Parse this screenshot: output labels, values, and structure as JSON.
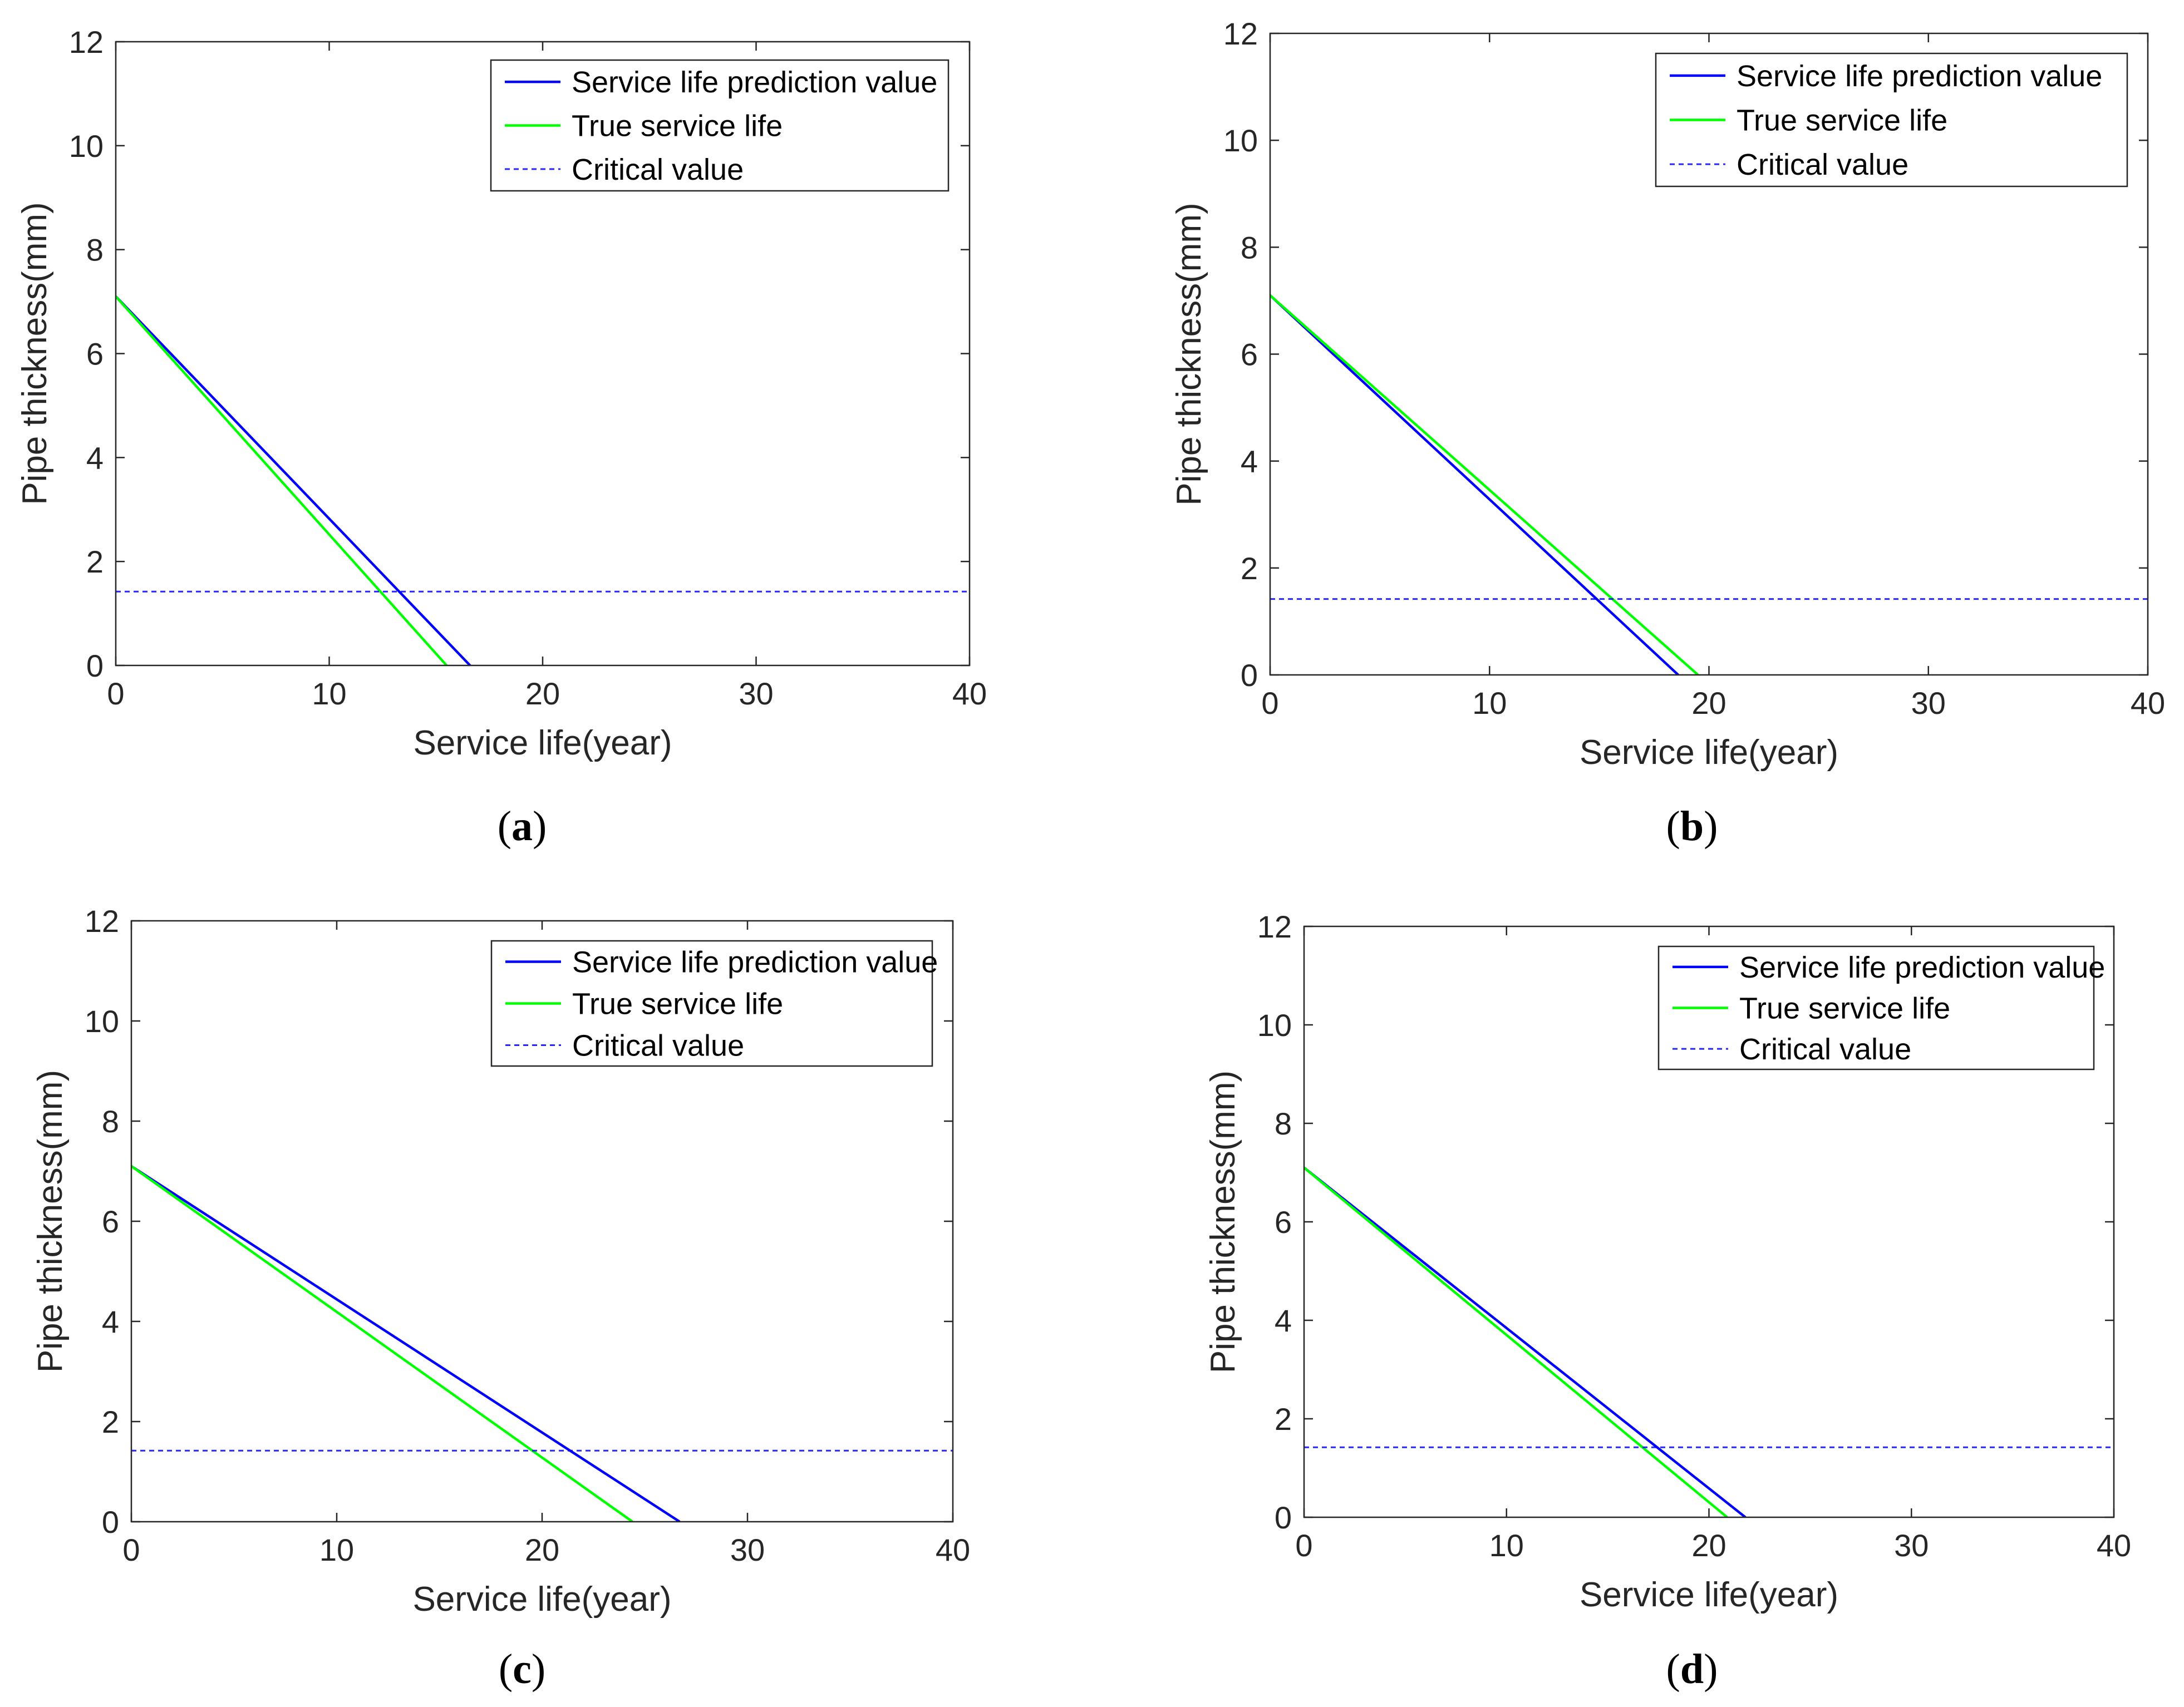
{
  "figure": {
    "name": "pipe-thickness-service-life-figure"
  },
  "chart_data": [
    {
      "id": "a",
      "type": "line",
      "panel_label": "a",
      "xlabel": "Service life(year)",
      "ylabel": "Pipe thickness(mm)",
      "xlim": [
        0,
        40
      ],
      "ylim": [
        0,
        12
      ],
      "xticks": [
        0,
        10,
        20,
        30,
        40
      ],
      "yticks": [
        0,
        2,
        4,
        6,
        8,
        10,
        12
      ],
      "grid": false,
      "legend_position": "top-right",
      "series": [
        {
          "name": "Service life prediction value",
          "color": "#0000ff",
          "style": "solid",
          "x": [
            0,
            16.6
          ],
          "y": [
            7.1,
            0
          ]
        },
        {
          "name": "True service life",
          "color": "#00ff00",
          "style": "solid",
          "x": [
            0,
            15.5
          ],
          "y": [
            7.1,
            0
          ]
        },
        {
          "name": "Critical value",
          "color": "#0000ff",
          "style": "dashed",
          "x": [
            0,
            40
          ],
          "y": [
            1.42,
            1.42
          ]
        }
      ]
    },
    {
      "id": "b",
      "type": "line",
      "panel_label": "b",
      "xlabel": "Service life(year)",
      "ylabel": "Pipe thickness(mm)",
      "xlim": [
        0,
        40
      ],
      "ylim": [
        0,
        12
      ],
      "xticks": [
        0,
        10,
        20,
        30,
        40
      ],
      "yticks": [
        0,
        2,
        4,
        6,
        8,
        10,
        12
      ],
      "grid": false,
      "legend_position": "top-right",
      "series": [
        {
          "name": "Service life prediction value",
          "color": "#0000ff",
          "style": "solid",
          "x": [
            0,
            18.6
          ],
          "y": [
            7.1,
            0
          ]
        },
        {
          "name": "True service life",
          "color": "#00ff00",
          "style": "solid",
          "x": [
            0,
            19.5
          ],
          "y": [
            7.1,
            0
          ]
        },
        {
          "name": "Critical value",
          "color": "#0000ff",
          "style": "dashed",
          "x": [
            0,
            40
          ],
          "y": [
            1.42,
            1.42
          ]
        }
      ]
    },
    {
      "id": "c",
      "type": "line",
      "panel_label": "c",
      "xlabel": "Service life(year)",
      "ylabel": "Pipe thickness(mm)",
      "xlim": [
        0,
        40
      ],
      "ylim": [
        0,
        12
      ],
      "xticks": [
        0,
        10,
        20,
        30,
        40
      ],
      "yticks": [
        0,
        2,
        4,
        6,
        8,
        10,
        12
      ],
      "grid": false,
      "legend_position": "top-right",
      "series": [
        {
          "name": "Service life prediction value",
          "color": "#0000ff",
          "style": "solid",
          "x": [
            0,
            26.7
          ],
          "y": [
            7.1,
            0
          ]
        },
        {
          "name": "True service life",
          "color": "#00ff00",
          "style": "solid",
          "x": [
            0,
            24.4
          ],
          "y": [
            7.1,
            0
          ]
        },
        {
          "name": "Critical value",
          "color": "#0000ff",
          "style": "dashed",
          "x": [
            0,
            40
          ],
          "y": [
            1.42,
            1.42
          ]
        }
      ]
    },
    {
      "id": "d",
      "type": "line",
      "panel_label": "d",
      "xlabel": "Service life(year)",
      "ylabel": "Pipe thickness(mm)",
      "xlim": [
        0,
        40
      ],
      "ylim": [
        0,
        12
      ],
      "xticks": [
        0,
        10,
        20,
        30,
        40
      ],
      "yticks": [
        0,
        2,
        4,
        6,
        8,
        10,
        12
      ],
      "grid": false,
      "legend_position": "top-right",
      "series": [
        {
          "name": "Service life prediction value",
          "color": "#0000ff",
          "style": "solid",
          "x": [
            0,
            21.8
          ],
          "y": [
            7.1,
            0
          ]
        },
        {
          "name": "True service life",
          "color": "#00ff00",
          "style": "solid",
          "x": [
            0,
            20.9
          ],
          "y": [
            7.1,
            0
          ]
        },
        {
          "name": "Critical value",
          "color": "#0000ff",
          "style": "dashed",
          "x": [
            0,
            40
          ],
          "y": [
            1.42,
            1.42
          ]
        }
      ]
    }
  ]
}
